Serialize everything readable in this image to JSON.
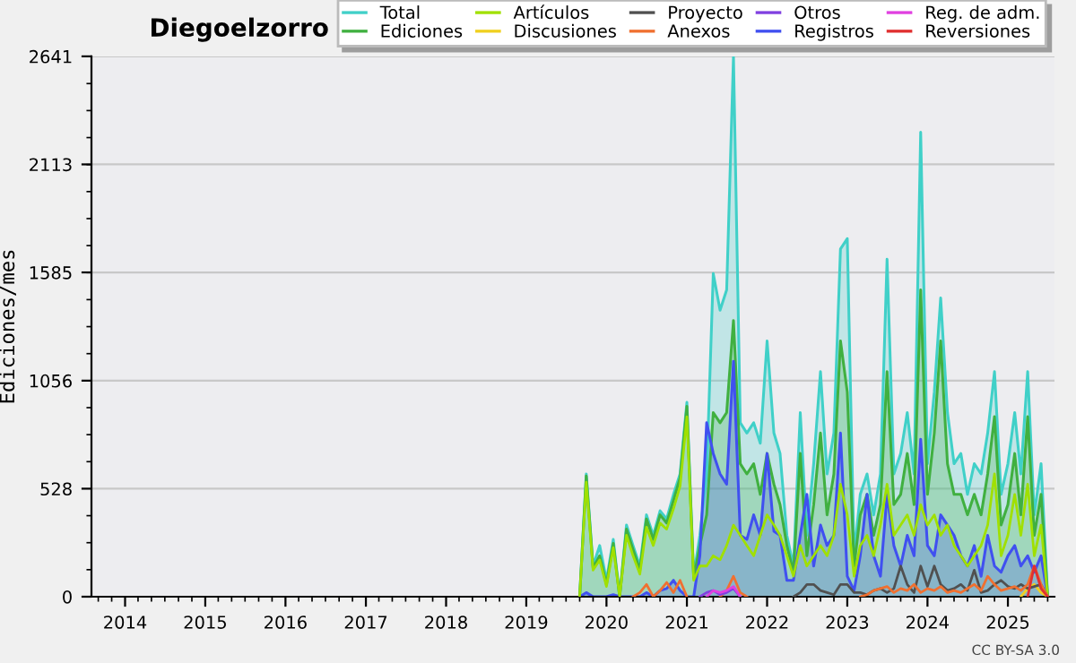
{
  "chart_data": {
    "type": "line",
    "title": "Diegoelzorro",
    "ylabel": "Ediciones/mes",
    "annotations": [
      "CC BY-SA 3.0"
    ],
    "x": [
      "2019-09",
      "2019-10",
      "2019-11",
      "2019-12",
      "2020-01",
      "2020-02",
      "2020-03",
      "2020-04",
      "2020-05",
      "2020-06",
      "2020-07",
      "2020-08",
      "2020-09",
      "2020-10",
      "2020-11",
      "2020-12",
      "2021-01",
      "2021-02",
      "2021-03",
      "2021-04",
      "2021-05",
      "2021-06",
      "2021-07",
      "2021-08",
      "2021-09",
      "2021-10",
      "2021-11",
      "2021-12",
      "2022-01",
      "2022-02",
      "2022-03",
      "2022-04",
      "2022-05",
      "2022-06",
      "2022-07",
      "2022-08",
      "2022-09",
      "2022-10",
      "2022-11",
      "2022-12",
      "2023-01",
      "2023-02",
      "2023-03",
      "2023-04",
      "2023-05",
      "2023-06",
      "2023-07",
      "2023-08",
      "2023-09",
      "2023-10",
      "2023-11",
      "2023-12",
      "2024-01",
      "2024-02",
      "2024-03",
      "2024-04",
      "2024-05",
      "2024-06",
      "2024-07",
      "2024-08",
      "2024-09",
      "2024-10",
      "2024-11",
      "2024-12",
      "2025-01",
      "2025-02",
      "2025-03",
      "2025-04",
      "2025-05",
      "2025-06",
      "2025-07"
    ],
    "xlim": [
      "2013-08",
      "2025-08"
    ],
    "xticks": [
      {
        "value": "2014-01",
        "label": "2014"
      },
      {
        "value": "2015-01",
        "label": "2015"
      },
      {
        "value": "2016-01",
        "label": "2016"
      },
      {
        "value": "2017-01",
        "label": "2017"
      },
      {
        "value": "2018-01",
        "label": "2018"
      },
      {
        "value": "2019-01",
        "label": "2019"
      },
      {
        "value": "2020-01",
        "label": "2020"
      },
      {
        "value": "2021-01",
        "label": "2021"
      },
      {
        "value": "2022-01",
        "label": "2022"
      },
      {
        "value": "2023-01",
        "label": "2023"
      },
      {
        "value": "2024-01",
        "label": "2024"
      },
      {
        "value": "2025-01",
        "label": "2025"
      }
    ],
    "ylim": [
      0,
      2641
    ],
    "yticks": [
      0,
      528,
      1056,
      1585,
      2113,
      2641
    ],
    "grid": "y",
    "legend": "top right",
    "series": [
      {
        "name": "Total",
        "type": "area",
        "color": "#40d0c8",
        "values": [
          0,
          600,
          150,
          250,
          80,
          280,
          0,
          350,
          250,
          150,
          400,
          300,
          420,
          380,
          500,
          600,
          950,
          100,
          300,
          600,
          1580,
          1400,
          1500,
          2640,
          850,
          800,
          850,
          750,
          1250,
          800,
          700,
          300,
          150,
          900,
          300,
          650,
          1100,
          600,
          800,
          1700,
          1750,
          200,
          500,
          600,
          400,
          600,
          1650,
          600,
          700,
          900,
          600,
          2270,
          650,
          1000,
          1460,
          900,
          650,
          700,
          500,
          650,
          600,
          800,
          1100,
          500,
          650,
          900,
          600,
          1100,
          400,
          650,
          0
        ]
      },
      {
        "name": "Ediciones",
        "type": "area",
        "color": "#40b040",
        "values": [
          0,
          590,
          140,
          200,
          60,
          260,
          0,
          330,
          230,
          130,
          380,
          280,
          400,
          360,
          470,
          580,
          930,
          90,
          250,
          400,
          900,
          850,
          900,
          1350,
          650,
          600,
          650,
          500,
          700,
          550,
          450,
          250,
          120,
          700,
          200,
          450,
          800,
          400,
          600,
          1250,
          1000,
          150,
          400,
          500,
          300,
          450,
          1100,
          450,
          500,
          700,
          450,
          1500,
          500,
          800,
          1250,
          650,
          500,
          500,
          400,
          500,
          400,
          600,
          880,
          350,
          450,
          700,
          400,
          880,
          300,
          500,
          0
        ]
      },
      {
        "name": "Artículos",
        "color": "#a0e000",
        "values": [
          0,
          560,
          130,
          180,
          50,
          240,
          0,
          300,
          200,
          110,
          340,
          250,
          360,
          330,
          430,
          540,
          880,
          80,
          150,
          150,
          200,
          180,
          250,
          350,
          300,
          250,
          200,
          300,
          400,
          350,
          300,
          200,
          100,
          250,
          150,
          200,
          250,
          200,
          300,
          550,
          400,
          100,
          250,
          300,
          200,
          350,
          550,
          300,
          350,
          400,
          300,
          450,
          350,
          400,
          300,
          350,
          250,
          200,
          150,
          200,
          250,
          350,
          600,
          200,
          300,
          500,
          300,
          550,
          200,
          350,
          0
        ]
      },
      {
        "name": "Discusiones",
        "color": "#f0d020",
        "values": [
          null,
          null,
          null,
          null,
          null,
          null,
          null,
          null,
          null,
          null,
          null,
          null,
          null,
          null,
          null,
          null,
          null,
          null,
          null,
          null,
          null,
          null,
          null,
          null,
          null,
          null,
          null,
          null,
          null,
          null,
          null,
          null,
          null,
          null,
          null,
          null,
          null,
          null,
          null,
          null,
          null,
          null,
          null,
          null,
          null,
          null,
          null,
          null,
          null,
          null,
          null,
          null,
          null,
          null,
          null,
          null,
          null,
          null,
          null,
          null,
          null,
          null,
          null,
          null,
          null,
          null,
          0,
          40,
          60,
          20,
          0
        ]
      },
      {
        "name": "Proyecto",
        "color": "#505050",
        "values": [
          null,
          null,
          null,
          null,
          null,
          null,
          null,
          null,
          null,
          null,
          null,
          null,
          null,
          null,
          null,
          null,
          null,
          null,
          null,
          null,
          null,
          null,
          null,
          null,
          null,
          null,
          null,
          null,
          null,
          null,
          null,
          null,
          0,
          20,
          60,
          60,
          30,
          20,
          10,
          60,
          60,
          20,
          20,
          10,
          30,
          40,
          20,
          40,
          150,
          60,
          20,
          150,
          50,
          150,
          60,
          30,
          40,
          60,
          30,
          130,
          20,
          30,
          60,
          80,
          50,
          40,
          60,
          40,
          50,
          60,
          0
        ]
      },
      {
        "name": "Anexos",
        "color": "#f07030",
        "values": [
          null,
          null,
          null,
          null,
          null,
          null,
          null,
          null,
          0,
          20,
          60,
          0,
          30,
          70,
          20,
          80,
          0,
          null,
          null,
          null,
          null,
          0,
          30,
          100,
          20,
          0,
          null,
          null,
          null,
          null,
          null,
          null,
          null,
          null,
          null,
          null,
          null,
          null,
          null,
          null,
          null,
          null,
          0,
          10,
          30,
          40,
          50,
          20,
          40,
          30,
          60,
          20,
          40,
          30,
          50,
          20,
          30,
          20,
          40,
          60,
          30,
          100,
          60,
          30,
          40,
          50,
          30,
          60,
          150,
          60,
          0
        ]
      },
      {
        "name": "Otros",
        "color": "#8040e0",
        "values": [
          null,
          null,
          null,
          null,
          null,
          null,
          null,
          null,
          null,
          null,
          null,
          null,
          null,
          null,
          null,
          null,
          null,
          null,
          0,
          20,
          30,
          10,
          20,
          40,
          0,
          null,
          null,
          null,
          null,
          null,
          null,
          null,
          null,
          null,
          null,
          null,
          null,
          null,
          null,
          null,
          null,
          null,
          null,
          null,
          null,
          null,
          null,
          null,
          null,
          null,
          null,
          null,
          null,
          null,
          null,
          null,
          null,
          null,
          null,
          null,
          null,
          null,
          null,
          null,
          null,
          null,
          null,
          null,
          null,
          null,
          null
        ]
      },
      {
        "name": "Registros",
        "type": "area",
        "color": "#4050f0",
        "values": [
          0,
          20,
          0,
          0,
          0,
          10,
          0,
          0,
          0,
          0,
          20,
          0,
          30,
          40,
          80,
          30,
          0,
          0,
          200,
          850,
          700,
          600,
          550,
          1150,
          300,
          280,
          400,
          300,
          700,
          320,
          300,
          80,
          80,
          300,
          500,
          150,
          350,
          250,
          300,
          800,
          100,
          30,
          200,
          500,
          200,
          100,
          500,
          250,
          150,
          300,
          200,
          770,
          250,
          200,
          400,
          350,
          300,
          200,
          150,
          250,
          100,
          300,
          150,
          120,
          200,
          250,
          150,
          200,
          120,
          200,
          0
        ]
      },
      {
        "name": "Reg. de adm.",
        "color": "#e040e0",
        "values": [
          null,
          null,
          null,
          null,
          null,
          null,
          null,
          null,
          null,
          null,
          null,
          null,
          null,
          null,
          null,
          null,
          null,
          null,
          null,
          0,
          30,
          20,
          30,
          50,
          0,
          null,
          null,
          null,
          null,
          null,
          null,
          null,
          null,
          null,
          null,
          null,
          null,
          null,
          null,
          null,
          null,
          null,
          null,
          null,
          null,
          null,
          null,
          null,
          null,
          null,
          null,
          null,
          null,
          null,
          null,
          null,
          null,
          null,
          null,
          null,
          null,
          null,
          null,
          null,
          null,
          null,
          null,
          null,
          null,
          null,
          null
        ]
      },
      {
        "name": "Reversiones",
        "color": "#e03030",
        "values": [
          null,
          null,
          null,
          null,
          null,
          null,
          null,
          null,
          null,
          null,
          null,
          null,
          null,
          null,
          null,
          null,
          null,
          null,
          null,
          null,
          null,
          null,
          null,
          null,
          null,
          null,
          null,
          null,
          null,
          null,
          null,
          null,
          null,
          null,
          null,
          null,
          null,
          null,
          null,
          null,
          null,
          null,
          null,
          null,
          null,
          null,
          null,
          null,
          null,
          null,
          null,
          null,
          null,
          null,
          null,
          null,
          null,
          null,
          null,
          null,
          null,
          null,
          null,
          null,
          null,
          null,
          null,
          0,
          150,
          40,
          0
        ]
      }
    ]
  }
}
